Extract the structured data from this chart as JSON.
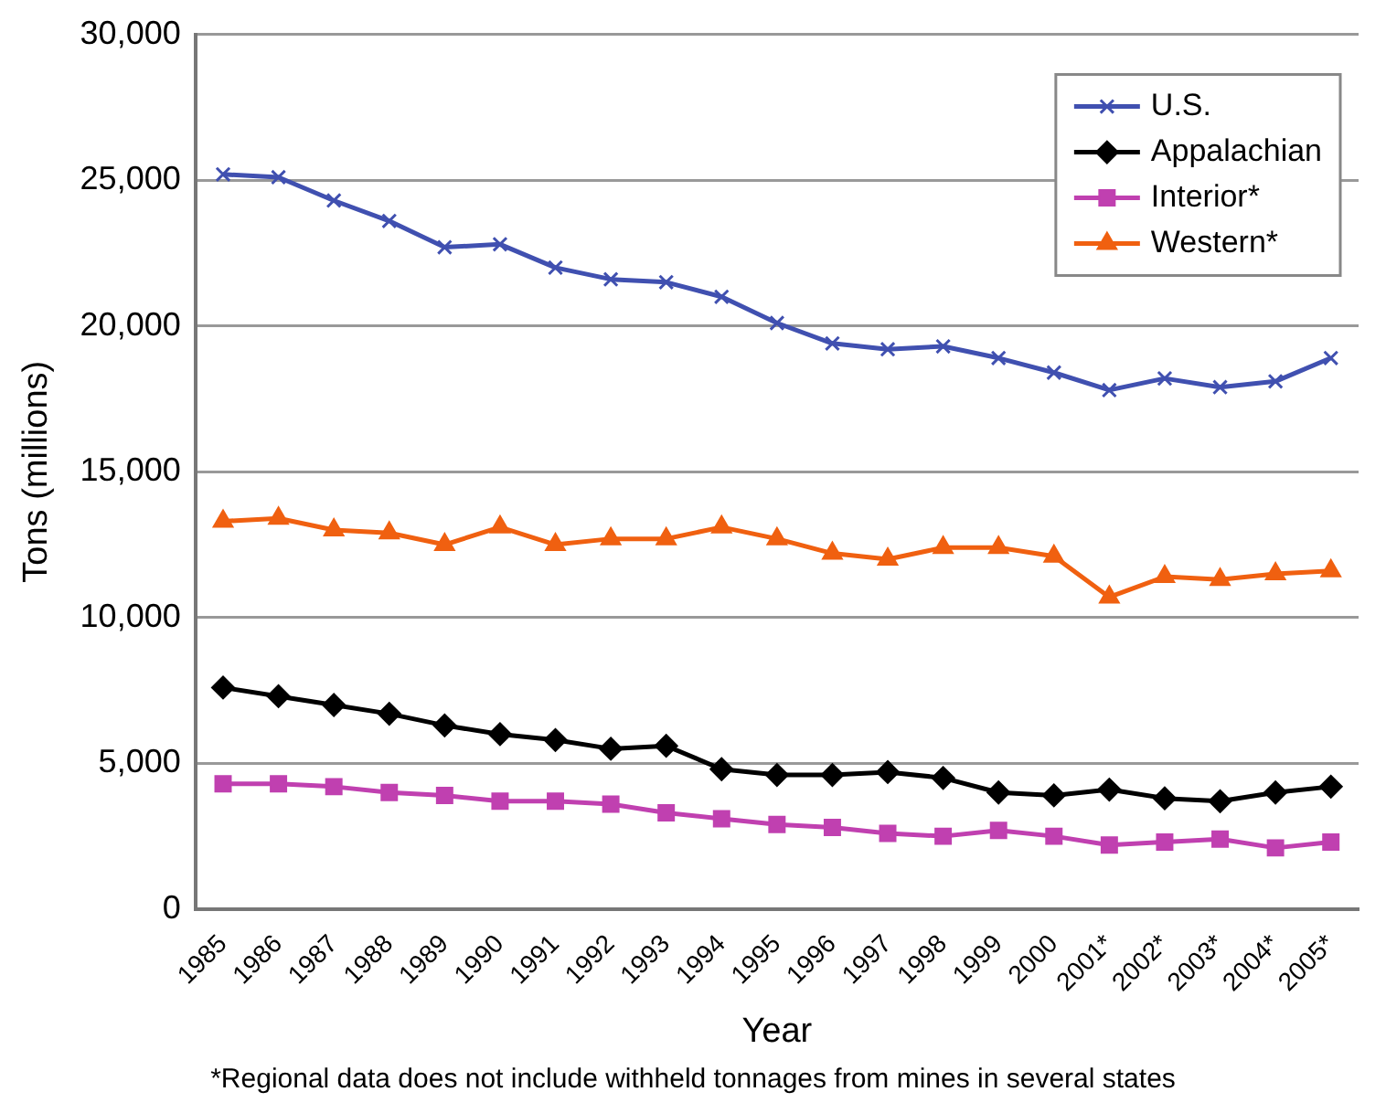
{
  "chart_data": {
    "type": "line",
    "xlabel": "Year",
    "ylabel": "Tons (millions)",
    "categories": [
      "1985",
      "1986",
      "1987",
      "1988",
      "1989",
      "1990",
      "1991",
      "1992",
      "1993",
      "1994",
      "1995",
      "1996",
      "1997",
      "1998",
      "1999",
      "2000",
      "2001*",
      "2002*",
      "2003*",
      "2004*",
      "2005*"
    ],
    "series": [
      {
        "name": "U.S.",
        "color": "#4050b0",
        "marker": "cross",
        "values": [
          25200,
          25100,
          24300,
          23600,
          22700,
          22800,
          22000,
          21600,
          21500,
          21000,
          20100,
          19400,
          19200,
          19300,
          18900,
          18400,
          17800,
          18200,
          17900,
          18100,
          18900
        ]
      },
      {
        "name": "Appalachian",
        "color": "#000000",
        "marker": "diamond",
        "values": [
          7600,
          7300,
          7000,
          6700,
          6300,
          6000,
          5800,
          5500,
          5600,
          4800,
          4600,
          4600,
          4700,
          4500,
          4000,
          3900,
          4100,
          3800,
          3700,
          4000,
          4200
        ]
      },
      {
        "name": "Interior*",
        "color": "#c040b0",
        "marker": "square",
        "values": [
          4300,
          4300,
          4200,
          4000,
          3900,
          3700,
          3700,
          3600,
          3300,
          3100,
          2900,
          2800,
          2600,
          2500,
          2700,
          2500,
          2200,
          2300,
          2400,
          2100,
          2300
        ]
      },
      {
        "name": "Western*",
        "color": "#f06010",
        "marker": "triangle",
        "values": [
          13300,
          13400,
          13000,
          12900,
          12500,
          13100,
          12500,
          12700,
          12700,
          13100,
          12700,
          12200,
          12000,
          12400,
          12400,
          12100,
          10700,
          11400,
          11300,
          11500,
          11600
        ]
      }
    ],
    "ylim": [
      0,
      30000
    ],
    "yticks": [
      0,
      {
        "value": 5000,
        "label": "5,000"
      },
      {
        "value": 10000,
        "label": "10,000"
      },
      {
        "value": 15000,
        "label": "15,000"
      },
      {
        "value": 20000,
        "label": "20,000"
      },
      {
        "value": 25000,
        "label": "25,000"
      },
      {
        "value": 30000,
        "label": "30,000"
      }
    ],
    "grid": "y",
    "legend": "top right",
    "line_style": "solid",
    "annotations": [
      "*Regional data does not include withheld tonnages from mines in several states"
    ]
  }
}
